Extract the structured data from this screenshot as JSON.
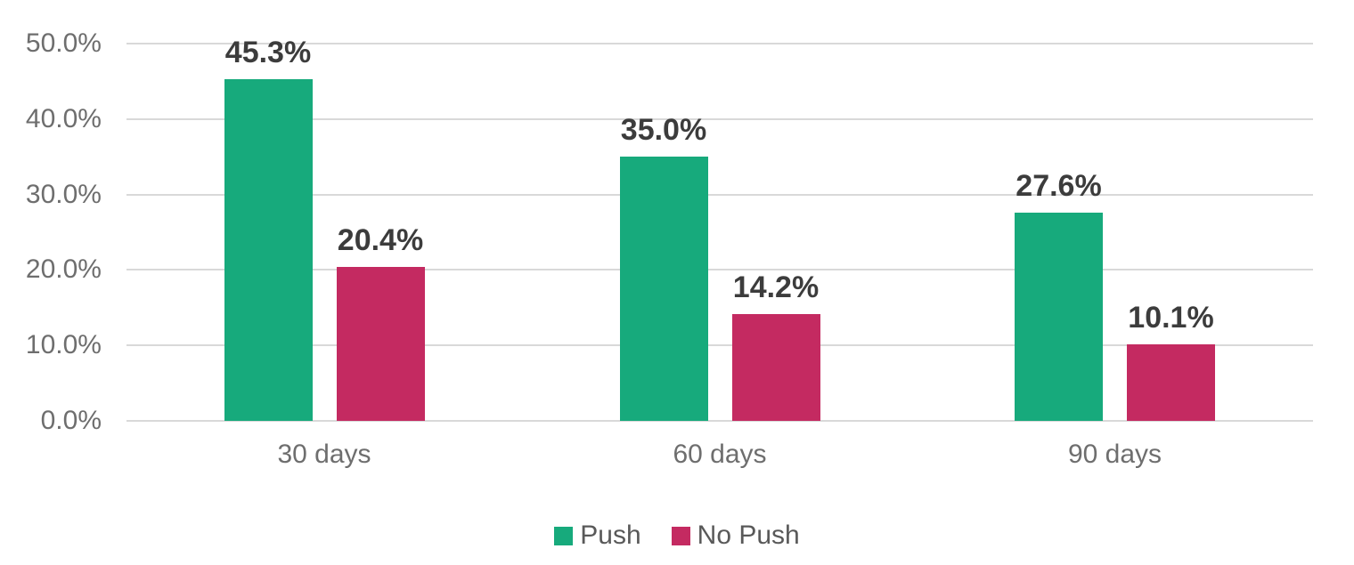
{
  "chart_data": {
    "type": "bar",
    "categories": [
      "30 days",
      "60 days",
      "90 days"
    ],
    "series": [
      {
        "name": "Push",
        "color": "#17aa7c",
        "values": [
          45.3,
          35.0,
          27.6
        ],
        "labels": [
          "45.3%",
          "35.0%",
          "27.6%"
        ]
      },
      {
        "name": "No Push",
        "color": "#c42a61",
        "values": [
          20.4,
          14.2,
          10.1
        ],
        "labels": [
          "20.4%",
          "14.2%",
          "10.1%"
        ]
      }
    ],
    "title": "",
    "xlabel": "",
    "ylabel": "",
    "ylim": [
      0,
      50
    ],
    "yticks": [
      0,
      10,
      20,
      30,
      40,
      50
    ],
    "ytick_labels": [
      "0.0%",
      "10.0%",
      "20.0%",
      "30.0%",
      "40.0%",
      "50.0%"
    ],
    "grid": true,
    "legend_position": "bottom",
    "colors": {
      "background": "#ffffff",
      "grid": "#d9d9d9",
      "axis_text": "#6e6e6e",
      "data_label": "#3c3c3c",
      "legend_text": "#595959"
    }
  }
}
